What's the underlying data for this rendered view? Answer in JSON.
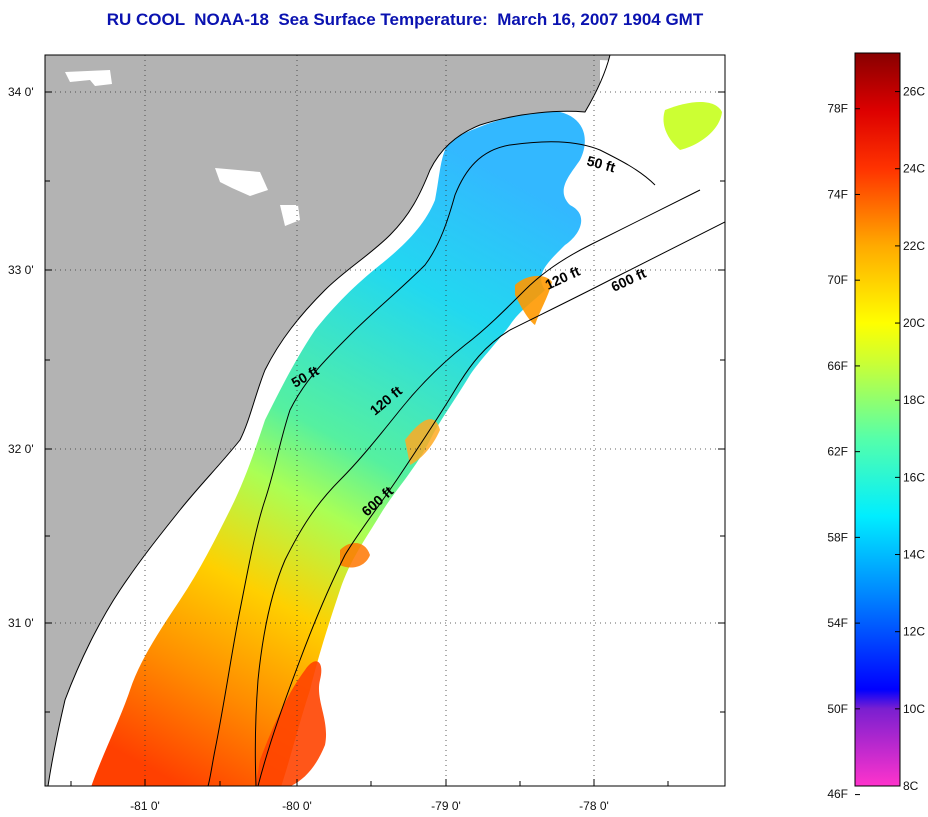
{
  "title": "RU COOL  NOAA-18  Sea Surface Temperature:  March 16, 2007 1904 GMT",
  "map": {
    "lat_ticks": [
      "34 0'",
      "33 0'",
      "32 0'",
      "31 0'"
    ],
    "lon_ticks": [
      "-81 0'",
      "-80 0'",
      "-79 0'",
      "-78 0'"
    ],
    "land_color": "#b3b3b3",
    "cloud_color": "#ffffff",
    "contours": [
      {
        "label": "50 ft",
        "depth_ft": 50
      },
      {
        "label": "50 ft",
        "depth_ft": 50
      },
      {
        "label": "120 ft",
        "depth_ft": 120
      },
      {
        "label": "120 ft",
        "depth_ft": 120
      },
      {
        "label": "600 ft",
        "depth_ft": 600
      },
      {
        "label": "600 ft",
        "depth_ft": 600
      }
    ]
  },
  "colorbar": {
    "fahrenheit_labels": [
      "78F",
      "74F",
      "70F",
      "66F",
      "62F",
      "58F",
      "54F",
      "50F",
      "46F"
    ],
    "celsius_labels": [
      "26C",
      "24C",
      "22C",
      "20C",
      "18C",
      "16C",
      "14C",
      "12C",
      "10C",
      "8C"
    ],
    "range_c": [
      8,
      27
    ],
    "stops": [
      {
        "c": 8,
        "color": "#ff33cc"
      },
      {
        "c": 10,
        "color": "#7a1fd0"
      },
      {
        "c": 10.5,
        "color": "#0000ff"
      },
      {
        "c": 13,
        "color": "#0088ff"
      },
      {
        "c": 15,
        "color": "#00eeff"
      },
      {
        "c": 17,
        "color": "#55ffaa"
      },
      {
        "c": 19,
        "color": "#ccff33"
      },
      {
        "c": 20,
        "color": "#ffff00"
      },
      {
        "c": 22,
        "color": "#ffaa00"
      },
      {
        "c": 24,
        "color": "#ff3300"
      },
      {
        "c": 25.5,
        "color": "#dd0000"
      },
      {
        "c": 27,
        "color": "#880000"
      }
    ]
  }
}
